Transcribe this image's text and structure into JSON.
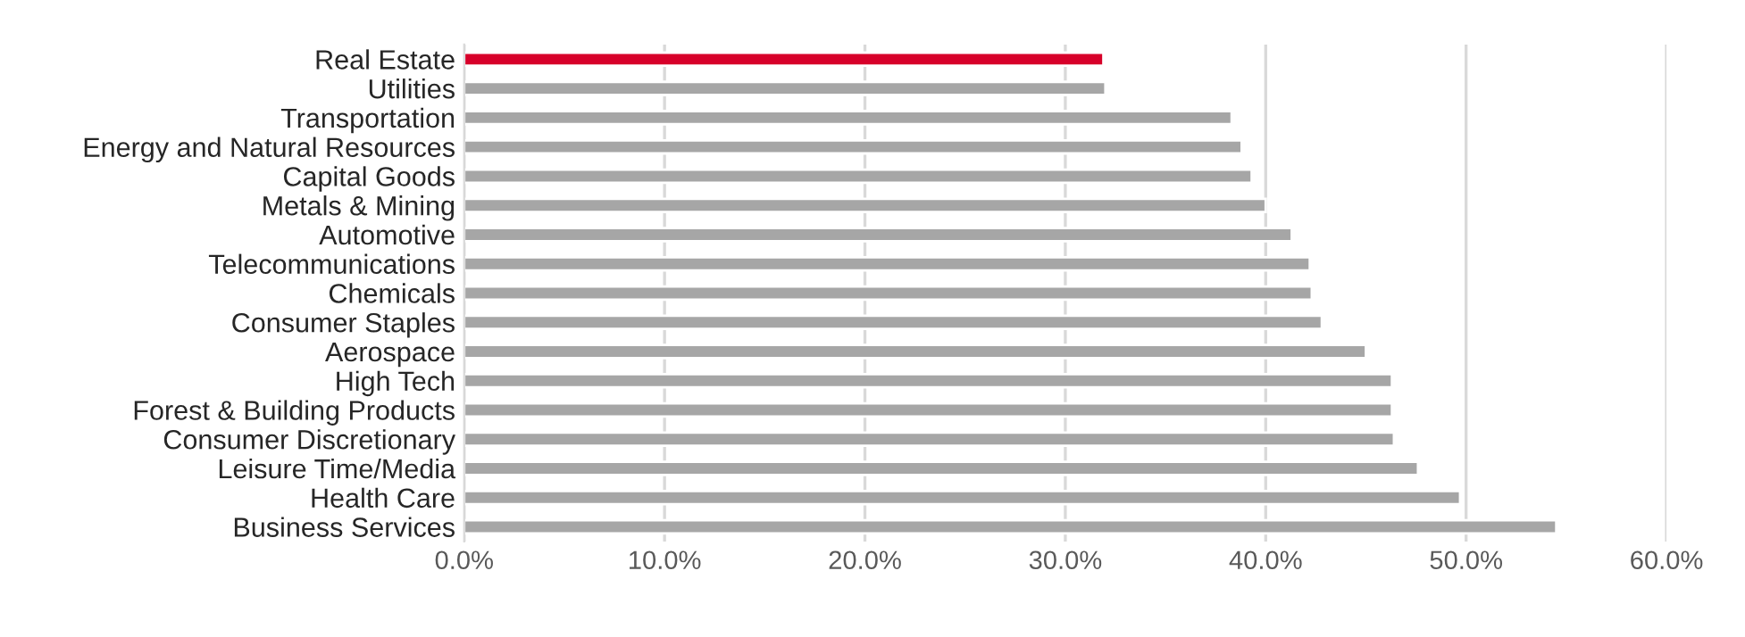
{
  "chart_data": {
    "type": "bar",
    "orientation": "horizontal",
    "categories": [
      "Real Estate",
      "Utilities",
      "Transportation",
      "Energy and Natural Resources",
      "Capital Goods",
      "Metals & Mining",
      "Automotive",
      "Telecommunications",
      "Chemicals",
      "Consumer Staples",
      "Aerospace",
      "High Tech",
      "Forest & Building Products",
      "Consumer Discretionary",
      "Leisure Time/Media",
      "Health Care",
      "Business Services"
    ],
    "values": [
      31.9,
      32.0,
      38.3,
      38.8,
      39.3,
      40.0,
      41.3,
      42.2,
      42.3,
      42.8,
      45.0,
      46.3,
      46.3,
      46.4,
      47.6,
      49.7,
      54.5
    ],
    "colors": [
      "#d7002a",
      "#a6a6a6",
      "#a6a6a6",
      "#a6a6a6",
      "#a6a6a6",
      "#a6a6a6",
      "#a6a6a6",
      "#a6a6a6",
      "#a6a6a6",
      "#a6a6a6",
      "#a6a6a6",
      "#a6a6a6",
      "#a6a6a6",
      "#a6a6a6",
      "#a6a6a6",
      "#a6a6a6",
      "#a6a6a6"
    ],
    "xlim": [
      0,
      60
    ],
    "xticks": [
      {
        "value": 0,
        "label": "0.0%"
      },
      {
        "value": 10,
        "label": "10.0%"
      },
      {
        "value": 20,
        "label": "20.0%"
      },
      {
        "value": 30,
        "label": "30.0%"
      },
      {
        "value": 40,
        "label": "40.0%"
      },
      {
        "value": 50,
        "label": "50.0%"
      },
      {
        "value": 60,
        "label": "60.0%"
      }
    ],
    "grid": "x",
    "legend": false
  }
}
